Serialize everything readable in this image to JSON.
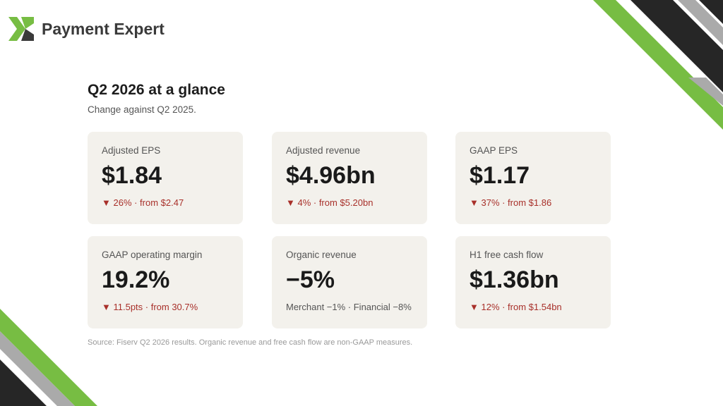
{
  "header": {
    "brand": "Payment Expert"
  },
  "title": "Q2 2026 at a glance",
  "subtitle": "Change against Q2 2025.",
  "cards": [
    {
      "label": "Adjusted EPS",
      "value": "$1.84",
      "change": "▼ 26% · from $2.47"
    },
    {
      "label": "Adjusted revenue",
      "value": "$4.96bn",
      "change": "▼ 4% · from $5.20bn"
    },
    {
      "label": "GAAP EPS",
      "value": "$1.17",
      "change": "▼ 37% · from $1.86"
    },
    {
      "label": "GAAP operating margin",
      "value": "19.2%",
      "change": "▼ 11.5pts · from 30.7%"
    },
    {
      "label": "Organic revenue",
      "value": "−5%",
      "change": "Merchant −1% · Financial −8%"
    },
    {
      "label": "H1 free cash flow",
      "value": "$1.36bn",
      "change": "▼ 12% · from $1.54bn"
    }
  ],
  "source": "Source: Fiserv Q2 2026 results. Organic revenue and free cash flow are non-GAAP measures."
}
